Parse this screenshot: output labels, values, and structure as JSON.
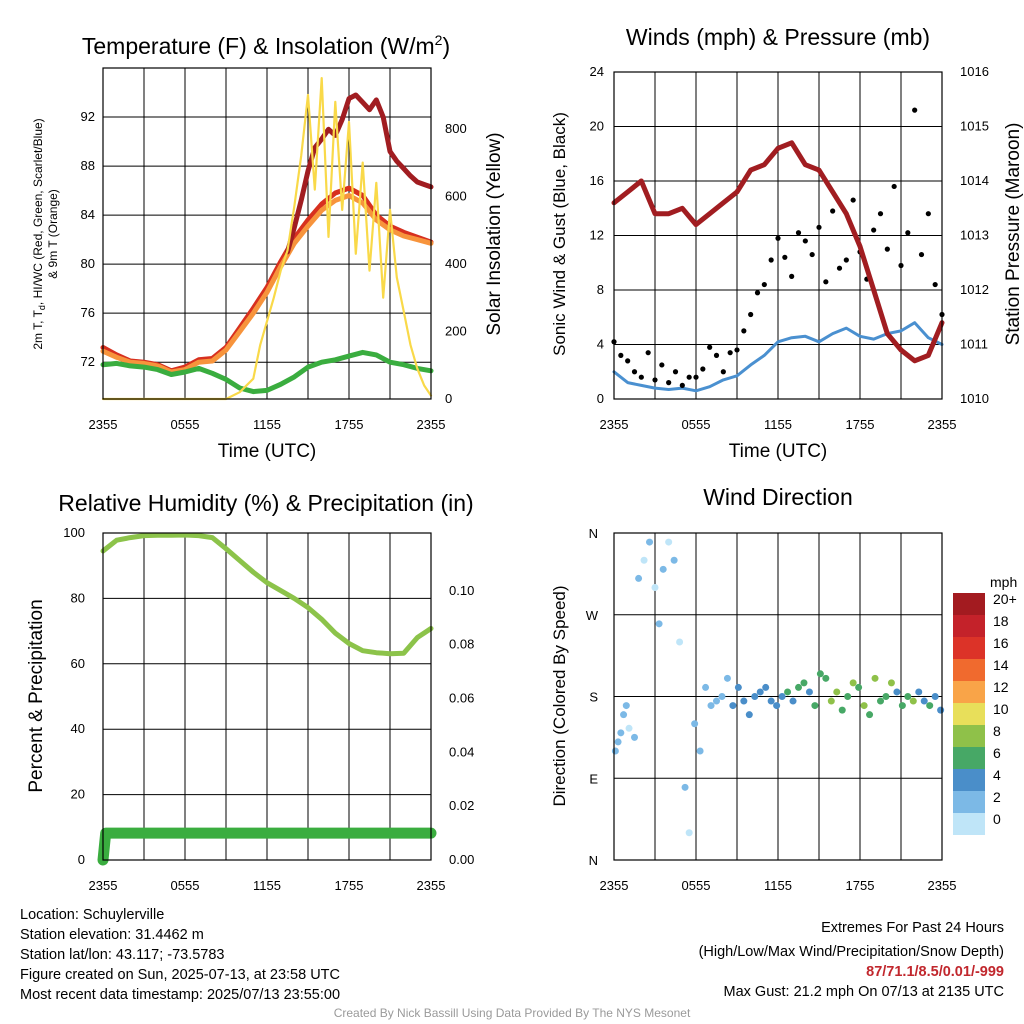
{
  "charts": {
    "temp": {
      "title_main": "Temperature (F) & Insolation (W/m",
      "title_sup": "2",
      "title_end": ")",
      "ylabel_left_line1": "2m T, T",
      "ylabel_left_sub": "d",
      "ylabel_left_line1_rest": ", HI/WC (Red, Green, Scarlet/Blue)",
      "ylabel_left_line2": "& 9m T (Orange)",
      "ylabel_right": "Solar Insolation (Yellow)",
      "xlabel": "Time (UTC)"
    },
    "winds": {
      "title": "Winds (mph) & Pressure (mb)",
      "ylabel_left": "Sonic Wind & Gust (Blue, Black)",
      "ylabel_right": "Station Pressure (Maroon)",
      "xlabel": "Time (UTC)"
    },
    "rh": {
      "title": "Relative Humidity (%) & Precipitation (in)",
      "ylabel_left": "Percent & Precipitation"
    },
    "wdir": {
      "title": "Wind Direction",
      "ylabel_left": "Direction (Colored By Speed)",
      "legend_unit": "mph",
      "legend_labels": [
        "20+",
        "18",
        "16",
        "14",
        "12",
        "10",
        "8",
        "6",
        "4",
        "2",
        "0"
      ],
      "legend_colors": [
        "#a31b20",
        "#c4222a",
        "#dc3328",
        "#f06a2e",
        "#f9a448",
        "#e8df5a",
        "#8fc149",
        "#47a866",
        "#4a8ec9",
        "#7cb9e6",
        "#bfe5f8"
      ]
    }
  },
  "chart_data": [
    {
      "type": "line",
      "title": "Temperature (F) & Insolation (W/m2)",
      "xlabel": "Time (UTC)",
      "x_ticks": [
        "2355",
        "0555",
        "1155",
        "1755",
        "2355"
      ],
      "y_left_ticks": [
        72,
        76,
        80,
        84,
        88,
        92
      ],
      "y_left_range": [
        69,
        96
      ],
      "y_right_ticks": [
        0,
        200,
        400,
        600,
        800
      ],
      "y_right_range": [
        0,
        980
      ],
      "x_hours_range": [
        0,
        24
      ],
      "series": [
        {
          "name": "2m T",
          "axis": "left",
          "color": "#d7301f",
          "x": [
            0,
            1,
            2,
            3,
            4,
            5,
            6,
            7,
            8,
            9,
            10,
            11,
            12,
            13,
            14,
            15,
            16,
            17,
            18,
            19,
            20,
            21,
            22,
            23,
            24
          ],
          "y": [
            73.2,
            72.6,
            72.1,
            72.0,
            71.8,
            71.3,
            71.6,
            72.2,
            72.3,
            73.2,
            74.8,
            76.4,
            78.1,
            80.2,
            82.1,
            83.6,
            84.9,
            85.8,
            86.2,
            85.6,
            84.0,
            83.1,
            82.6,
            82.2,
            81.8
          ]
        },
        {
          "name": "9m T",
          "axis": "left",
          "color": "#f7943c",
          "x": [
            0,
            1,
            2,
            3,
            4,
            5,
            6,
            7,
            8,
            9,
            10,
            11,
            12,
            13,
            14,
            15,
            16,
            17,
            18,
            19,
            20,
            21,
            22,
            23,
            24
          ],
          "y": [
            72.9,
            72.4,
            72.0,
            71.9,
            71.7,
            71.2,
            71.4,
            72.0,
            72.1,
            73.0,
            74.5,
            76.0,
            77.7,
            79.8,
            81.7,
            83.1,
            84.4,
            85.2,
            85.6,
            85.0,
            83.6,
            82.8,
            82.3,
            82.0,
            81.7
          ]
        },
        {
          "name": "Td",
          "axis": "left",
          "color": "#3aad3f",
          "x": [
            0,
            1,
            2,
            3,
            4,
            5,
            6,
            7,
            8,
            9,
            10,
            11,
            12,
            13,
            14,
            15,
            16,
            17,
            18,
            19,
            20,
            21,
            22,
            23,
            24
          ],
          "y": [
            71.8,
            71.9,
            71.7,
            71.6,
            71.4,
            71.0,
            71.2,
            71.5,
            71.1,
            70.6,
            69.9,
            69.6,
            69.7,
            70.2,
            70.8,
            71.6,
            72.0,
            72.2,
            72.5,
            72.8,
            72.6,
            72.0,
            71.8,
            71.5,
            71.3
          ]
        },
        {
          "name": "HI/WC",
          "axis": "left",
          "color": "#a11d21",
          "x": [
            13.5,
            14,
            14.5,
            15,
            15.5,
            16,
            16.5,
            17,
            17.5,
            18,
            18.5,
            19,
            19.5,
            20,
            20.5,
            21,
            21.5,
            22,
            22.5,
            23,
            23.5,
            24
          ],
          "y": [
            81.0,
            83.0,
            85.2,
            87.6,
            89.5,
            90.2,
            91.0,
            90.5,
            91.8,
            93.5,
            93.8,
            93.2,
            92.6,
            93.4,
            92.0,
            89.2,
            88.4,
            87.8,
            87.2,
            86.7,
            86.5,
            86.3
          ]
        },
        {
          "name": "Solar Insolation",
          "axis": "right",
          "color": "#f9d949",
          "x": [
            0,
            4,
            7,
            9,
            10,
            11,
            11.5,
            12,
            12.5,
            13,
            13.5,
            14,
            14.5,
            15,
            15.5,
            16,
            16.5,
            17,
            17.5,
            18,
            18.5,
            19,
            19.5,
            20,
            20.5,
            21,
            21.5,
            22,
            22.5,
            23,
            23.5,
            24
          ],
          "y": [
            0,
            0,
            0,
            0,
            20,
            60,
            160,
            230,
            300,
            380,
            440,
            570,
            720,
            900,
            620,
            950,
            480,
            880,
            560,
            820,
            430,
            700,
            380,
            640,
            300,
            560,
            360,
            260,
            160,
            90,
            40,
            10
          ]
        }
      ]
    },
    {
      "type": "scatter",
      "title": "Winds (mph) & Pressure (mb)",
      "xlabel": "Time (UTC)",
      "x_ticks": [
        "2355",
        "0555",
        "1155",
        "1755",
        "2355"
      ],
      "y_left_ticks": [
        0,
        4,
        8,
        12,
        16,
        20,
        24
      ],
      "y_left_range": [
        0,
        24
      ],
      "y_right_ticks": [
        1010,
        1011,
        1012,
        1013,
        1014,
        1015,
        1016
      ],
      "y_right_range": [
        1010,
        1016
      ],
      "series": [
        {
          "name": "Sonic Wind",
          "axis": "left",
          "color": "#4a90d0",
          "x": [
            0,
            1,
            2,
            3,
            4,
            5,
            6,
            7,
            8,
            9,
            10,
            11,
            12,
            13,
            14,
            15,
            16,
            17,
            18,
            19,
            20,
            21,
            22,
            23,
            24
          ],
          "y": [
            2.0,
            1.2,
            1.0,
            0.8,
            0.7,
            0.8,
            0.6,
            0.9,
            1.4,
            1.7,
            2.5,
            3.2,
            4.2,
            4.5,
            4.6,
            4.2,
            4.8,
            5.2,
            4.6,
            4.4,
            4.8,
            5.0,
            5.6,
            4.5,
            4.0
          ]
        },
        {
          "name": "Gust",
          "axis": "left",
          "color": "#000000",
          "x": [
            0,
            0.5,
            1,
            1.5,
            2,
            2.5,
            3,
            3.5,
            4,
            4.5,
            5,
            5.5,
            6,
            6.5,
            7,
            7.5,
            8,
            8.5,
            9,
            9.5,
            10,
            10.5,
            11,
            11.5,
            12,
            12.5,
            13,
            13.5,
            14,
            14.5,
            15,
            15.5,
            16,
            16.5,
            17,
            17.5,
            18,
            18.5,
            19,
            19.5,
            20,
            20.5,
            21,
            21.5,
            22,
            22.5,
            23,
            23.5,
            24
          ],
          "y": [
            4.2,
            3.2,
            2.8,
            2.0,
            1.6,
            3.4,
            1.4,
            2.5,
            1.2,
            2.0,
            1.0,
            1.6,
            1.6,
            2.2,
            3.8,
            3.2,
            2.0,
            3.4,
            3.6,
            5.0,
            6.2,
            7.8,
            8.4,
            10.2,
            11.8,
            10.4,
            9.0,
            12.2,
            11.6,
            10.6,
            12.6,
            8.6,
            13.8,
            9.6,
            10.2,
            14.6,
            10.8,
            8.8,
            12.4,
            13.6,
            11.0,
            15.6,
            9.8,
            12.2,
            21.2,
            10.6,
            13.6,
            8.4,
            6.2
          ]
        },
        {
          "name": "Station Pressure",
          "axis": "right",
          "color": "#a11d21",
          "x": [
            0,
            1,
            2,
            3,
            4,
            5,
            6,
            7,
            8,
            9,
            10,
            11,
            12,
            13,
            14,
            15,
            16,
            17,
            18,
            19,
            20,
            21,
            22,
            23,
            24
          ],
          "y": [
            1013.6,
            1013.8,
            1014.0,
            1013.4,
            1013.4,
            1013.5,
            1013.2,
            1013.4,
            1013.6,
            1013.8,
            1014.2,
            1014.3,
            1014.6,
            1014.7,
            1014.3,
            1014.2,
            1013.8,
            1013.4,
            1012.8,
            1012.0,
            1011.2,
            1010.9,
            1010.7,
            1010.8,
            1011.4
          ]
        }
      ]
    },
    {
      "type": "line",
      "title": "Relative Humidity (%) & Precipitation (in)",
      "x_ticks": [
        "2355",
        "0555",
        "1155",
        "1755",
        "2355"
      ],
      "y_left_ticks": [
        0,
        20,
        40,
        60,
        80,
        100
      ],
      "y_left_range": [
        0,
        100
      ],
      "y_right_ticks": [
        "0.00",
        "0.02",
        "0.04",
        "0.06",
        "0.08",
        "0.10"
      ],
      "y_right_range": [
        0,
        0.1215
      ],
      "series": [
        {
          "name": "Relative Humidity",
          "axis": "left",
          "color": "#8cc34a",
          "x": [
            0,
            1,
            2,
            3,
            4,
            5,
            6,
            7,
            8,
            9,
            10,
            11,
            12,
            13,
            14,
            15,
            16,
            17,
            18,
            19,
            20,
            21,
            22,
            23,
            24
          ],
          "y": [
            94.5,
            97.8,
            98.6,
            99.2,
            99.3,
            99.3,
            99.4,
            99.2,
            98.6,
            95.2,
            91.6,
            88.0,
            84.8,
            82.4,
            80.0,
            77.2,
            73.6,
            69.4,
            66.2,
            64.0,
            63.4,
            63.1,
            63.2,
            68.0,
            70.8
          ]
        },
        {
          "name": "Precipitation",
          "axis": "right",
          "color": "#3aad3f",
          "x": [
            0,
            0.2,
            24
          ],
          "y": [
            0.0,
            0.01,
            0.01
          ]
        }
      ]
    },
    {
      "type": "scatter",
      "title": "Wind Direction",
      "x_ticks": [
        "2355",
        "0555",
        "1155",
        "1755",
        "2355"
      ],
      "y_ticks": [
        "N",
        "E",
        "S",
        "W",
        "N"
      ],
      "y_range_deg": [
        0,
        360
      ],
      "color_scale_unit": "mph",
      "points_hours": [
        0.1,
        0.3,
        0.5,
        0.7,
        0.9,
        1.1,
        1.5,
        1.8,
        2.2,
        2.6,
        3.0,
        3.3,
        3.6,
        4.0,
        4.4,
        4.8,
        5.2,
        5.5,
        5.9,
        6.3,
        6.7,
        7.1,
        7.5,
        7.9,
        8.3,
        8.7,
        9.1,
        9.5,
        9.9,
        10.3,
        10.7,
        11.1,
        11.5,
        11.9,
        12.3,
        12.7,
        13.1,
        13.5,
        13.9,
        14.3,
        14.7,
        15.1,
        15.5,
        15.9,
        16.3,
        16.7,
        17.1,
        17.5,
        17.9,
        18.3,
        18.7,
        19.1,
        19.5,
        19.9,
        20.3,
        20.7,
        21.1,
        21.5,
        21.9,
        22.3,
        22.7,
        23.1,
        23.5,
        23.9
      ],
      "points_direction_deg": [
        120,
        130,
        140,
        160,
        170,
        145,
        135,
        310,
        330,
        350,
        300,
        260,
        320,
        350,
        330,
        240,
        80,
        30,
        150,
        120,
        190,
        170,
        175,
        180,
        200,
        170,
        190,
        175,
        160,
        180,
        185,
        190,
        175,
        170,
        180,
        185,
        175,
        190,
        195,
        185,
        170,
        205,
        200,
        175,
        185,
        165,
        180,
        195,
        190,
        170,
        160,
        200,
        175,
        180,
        195,
        185,
        170,
        180,
        175,
        185,
        175,
        170,
        180,
        165
      ],
      "points_speed_mph": [
        1,
        1,
        2,
        1,
        1,
        0,
        1,
        1,
        0,
        1,
        0,
        1,
        1,
        0,
        1,
        0,
        1,
        0,
        2,
        1,
        1,
        2,
        2,
        2,
        2,
        3,
        3,
        3,
        3,
        4,
        4,
        4,
        3,
        4,
        4,
        5,
        4,
        6,
        5,
        4,
        6,
        5,
        6,
        7,
        7,
        5,
        6,
        7,
        6,
        7,
        6,
        7,
        5,
        6,
        7,
        4,
        6,
        5,
        7,
        4,
        4,
        5,
        3,
        4
      ]
    }
  ],
  "footer": {
    "location": "Location: Schuylerville",
    "elevation": "Station elevation: 31.4462 m",
    "latlon": "Station lat/lon: 43.117; -73.5783",
    "created": "Figure created on Sun, 2025-07-13, at 23:58 UTC",
    "recent": "Most recent data timestamp: 2025/07/13 23:55:00",
    "extremes_title": "Extremes For Past 24 Hours",
    "extremes_subtitle": "(High/Low/Max Wind/Precipitation/Snow Depth)",
    "extremes_values": "87/71.1/8.5/0.01/-999",
    "max_gust": "Max Gust: 21.2 mph On 07/13 at 2135 UTC",
    "credit": "Created By Nick Bassill Using Data Provided By The NYS Mesonet"
  }
}
